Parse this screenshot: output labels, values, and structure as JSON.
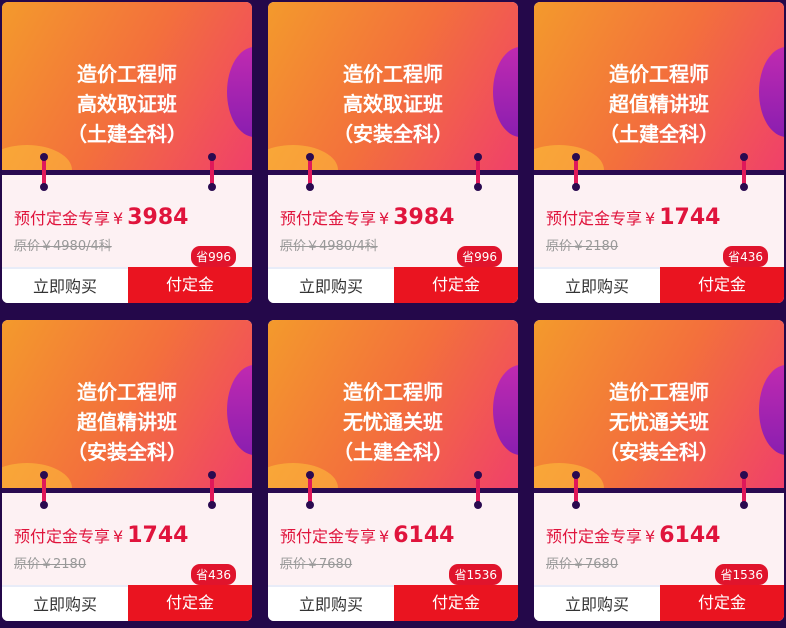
{
  "buttons": {
    "buy": "立即购买",
    "deposit": "付定金"
  },
  "price_prefix": "预付定金专享",
  "currency": "¥",
  "cards": [
    {
      "title": [
        "造价工程师",
        "高效取证班",
        "（土建全科）"
      ],
      "price": "3984",
      "original": "原价￥4980/4科",
      "save": "省996"
    },
    {
      "title": [
        "造价工程师",
        "高效取证班",
        "（安装全科）"
      ],
      "price": "3984",
      "original": "原价￥4980/4科",
      "save": "省996"
    },
    {
      "title": [
        "造价工程师",
        "超值精讲班",
        "（土建全科）"
      ],
      "price": "1744",
      "original": "原价￥2180",
      "save": "省436"
    },
    {
      "title": [
        "造价工程师",
        "超值精讲班",
        "（安装全科）"
      ],
      "price": "1744",
      "original": "原价￥2180",
      "save": "省436"
    },
    {
      "title": [
        "造价工程师",
        "无忧通关班",
        "（土建全科）"
      ],
      "price": "6144",
      "original": "原价￥7680",
      "save": "省1536"
    },
    {
      "title": [
        "造价工程师",
        "无忧通关班",
        "（安装全科）"
      ],
      "price": "6144",
      "original": "原价￥7680",
      "save": "省1536"
    }
  ]
}
